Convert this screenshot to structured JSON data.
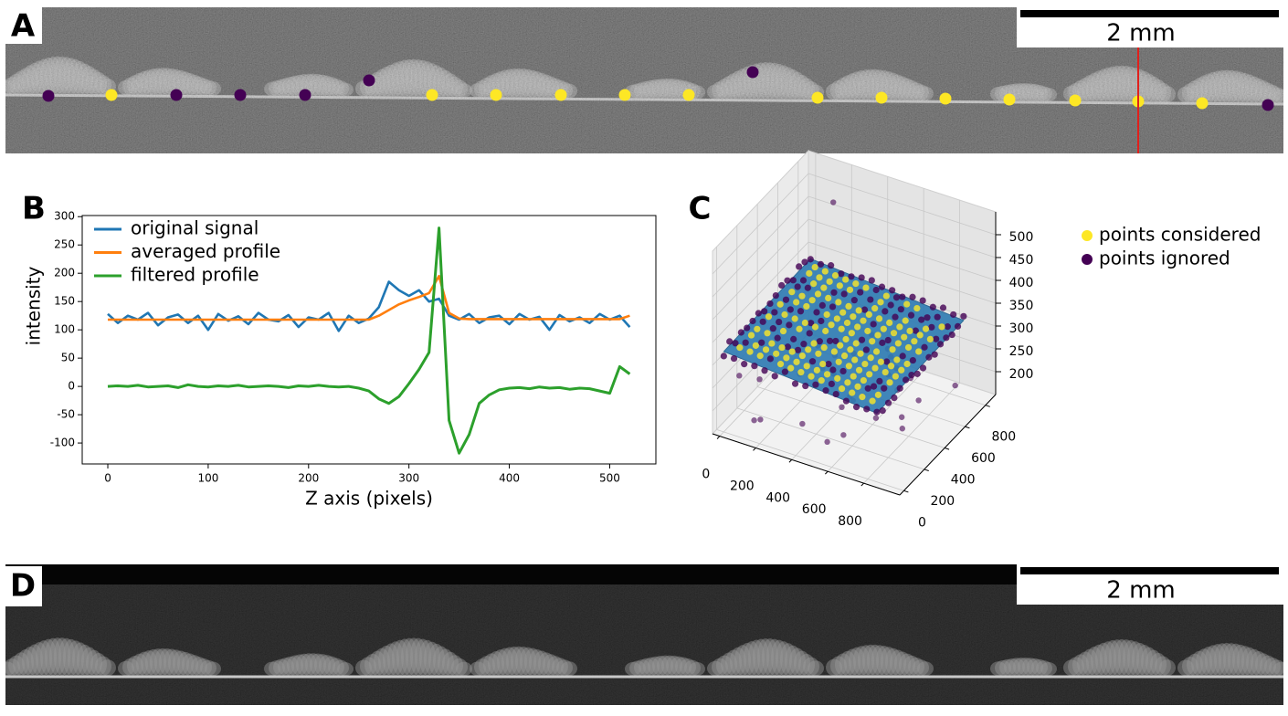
{
  "panels": {
    "A": {
      "label": "A",
      "scale_bar": "2 mm"
    },
    "B": {
      "label": "B"
    },
    "C": {
      "label": "C"
    },
    "D": {
      "label": "D",
      "scale_bar": "2 mm"
    }
  },
  "chart_data": [
    {
      "type": "line",
      "xlabel": "Z axis (pixels)",
      "ylabel": "intensity",
      "x": [
        0,
        10,
        20,
        30,
        40,
        50,
        60,
        70,
        80,
        90,
        100,
        110,
        120,
        130,
        140,
        150,
        160,
        170,
        180,
        190,
        200,
        210,
        220,
        230,
        240,
        250,
        260,
        270,
        280,
        290,
        300,
        310,
        320,
        330,
        340,
        350,
        360,
        370,
        380,
        390,
        400,
        410,
        420,
        430,
        440,
        450,
        460,
        470,
        480,
        490,
        500,
        510,
        520
      ],
      "series": [
        {
          "name": "original signal",
          "color": "#1f77b4",
          "values": [
            128,
            112,
            125,
            118,
            130,
            108,
            122,
            127,
            112,
            125,
            100,
            128,
            116,
            124,
            110,
            130,
            118,
            115,
            126,
            105,
            122,
            118,
            130,
            98,
            125,
            112,
            120,
            140,
            185,
            170,
            160,
            170,
            150,
            155,
            125,
            118,
            128,
            112,
            122,
            125,
            110,
            128,
            118,
            123,
            100,
            126,
            115,
            122,
            112,
            128,
            118,
            125,
            105
          ]
        },
        {
          "name": "averaged profile",
          "color": "#ff7f0e",
          "values": [
            118,
            118,
            118,
            118,
            118,
            118,
            118,
            118,
            118,
            118,
            118,
            118,
            118,
            118,
            118,
            118,
            118,
            118,
            118,
            118,
            118,
            118,
            118,
            118,
            118,
            118,
            118,
            125,
            135,
            145,
            152,
            158,
            165,
            195,
            130,
            120,
            119,
            119,
            119,
            119,
            119,
            119,
            119,
            119,
            119,
            119,
            119,
            119,
            119,
            119,
            119,
            119,
            125
          ]
        },
        {
          "name": "filtered profile",
          "color": "#2ca02c",
          "values": [
            0,
            1,
            0,
            2,
            -1,
            0,
            1,
            -2,
            3,
            0,
            -1,
            1,
            0,
            2,
            -1,
            0,
            1,
            0,
            -2,
            1,
            0,
            2,
            0,
            -1,
            0,
            -3,
            -8,
            -22,
            -30,
            -18,
            5,
            30,
            60,
            280,
            -60,
            -118,
            -85,
            -30,
            -15,
            -6,
            -3,
            -2,
            -4,
            -1,
            -3,
            -2,
            -5,
            -3,
            -4,
            -8,
            -12,
            35,
            22
          ]
        }
      ],
      "xlim": [
        -25.5,
        546
      ],
      "ylim": [
        -137,
        302
      ],
      "xticks": [
        0,
        100,
        200,
        300,
        400,
        500
      ],
      "yticks": [
        -100,
        -50,
        0,
        50,
        100,
        150,
        200,
        250,
        300
      ],
      "grid": false,
      "legend": "upper left"
    },
    {
      "type": "scatter3d",
      "xlim": [
        -40,
        1000
      ],
      "ylim": [
        -40,
        900
      ],
      "zlim": [
        150,
        550
      ],
      "xticks": [
        0,
        200,
        400,
        600,
        800
      ],
      "yticks": [
        0,
        200,
        400,
        600,
        800
      ],
      "zticks": [
        200,
        250,
        300,
        350,
        400,
        450,
        500
      ],
      "grid": true,
      "legend_entries": [
        {
          "name": "points considered",
          "color": "#fde725"
        },
        {
          "name": "points ignored",
          "color": "#440154"
        }
      ]
    }
  ]
}
